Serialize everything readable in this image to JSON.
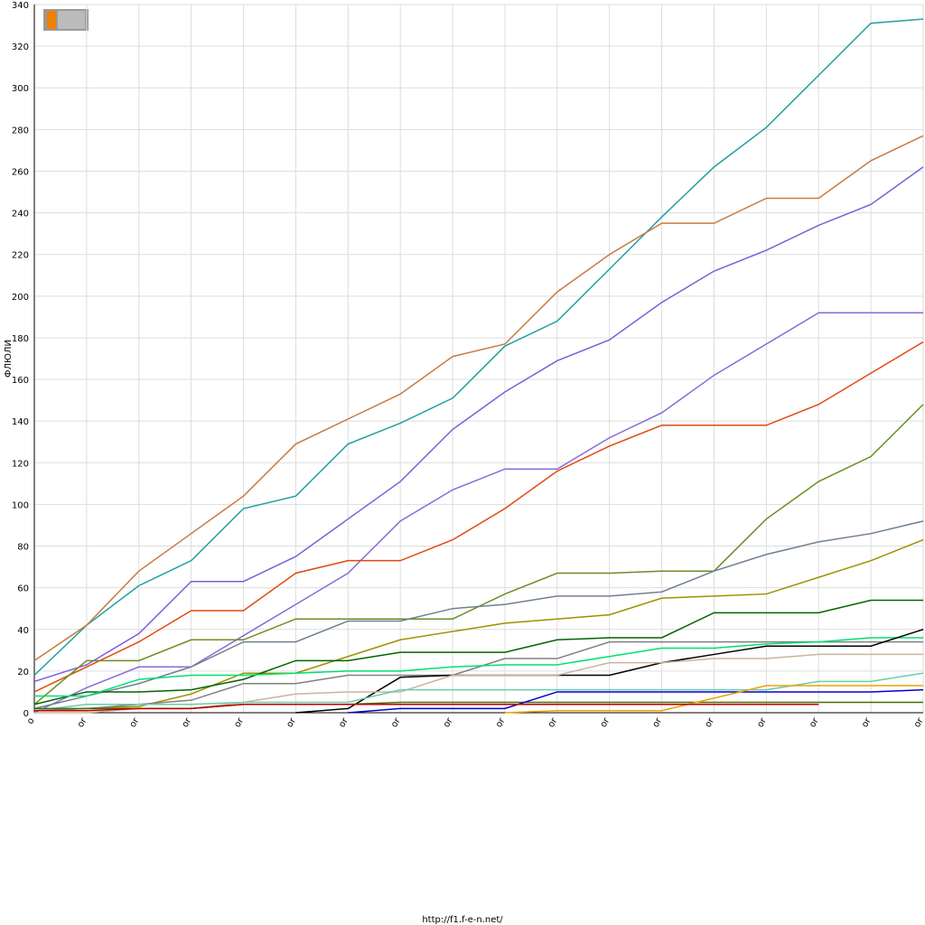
{
  "chart_data": {
    "type": "line",
    "y_label": "ФЛЮЛИ",
    "footer": "http://f1.f-e-n.net/",
    "categories": [
      "o",
      "or",
      "or",
      "or",
      "or",
      "or",
      "or",
      "or",
      "or",
      "or",
      "or",
      "or",
      "or",
      "or",
      "or",
      "or",
      "or",
      "or"
    ],
    "ylim": [
      0,
      340
    ],
    "yticks": [
      0,
      20,
      40,
      60,
      80,
      100,
      120,
      140,
      160,
      180,
      200,
      220,
      240,
      260,
      280,
      300,
      320,
      340
    ],
    "grid": true,
    "series": [
      {
        "color": "#20a0a0",
        "values": [
          18,
          42,
          61,
          73,
          98,
          104,
          129,
          139,
          151,
          176,
          188,
          213,
          238,
          262,
          281,
          306,
          331,
          333
        ]
      },
      {
        "color": "#c87a40",
        "values": [
          25,
          42,
          68,
          86,
          104,
          129,
          141,
          153,
          171,
          177,
          202,
          220,
          235,
          235,
          247,
          247,
          265,
          277
        ]
      },
      {
        "color": "#7b5fd8",
        "values": [
          15,
          23,
          38,
          63,
          63,
          75,
          93,
          111,
          136,
          154,
          169,
          179,
          197,
          212,
          222,
          234,
          244,
          262
        ]
      },
      {
        "color": "#8a6ad8",
        "values": [
          0,
          12,
          22,
          22,
          37,
          52,
          67,
          92,
          107,
          117,
          117,
          132,
          144,
          162,
          177,
          192,
          192,
          192
        ]
      },
      {
        "color": "#e04a10",
        "values": [
          10,
          22,
          34,
          49,
          49,
          67,
          73,
          73,
          83,
          98,
          116,
          128,
          138,
          138,
          138,
          148,
          163,
          178
        ]
      },
      {
        "color": "#6b8e23",
        "values": [
          4,
          25,
          25,
          35,
          35,
          45,
          45,
          45,
          45,
          57,
          67,
          67,
          68,
          68,
          93,
          111,
          123,
          148
        ]
      },
      {
        "color": "#708090",
        "values": [
          2,
          8,
          14,
          22,
          34,
          34,
          44,
          44,
          50,
          52,
          56,
          56,
          58,
          68,
          76,
          82,
          86,
          92
        ]
      },
      {
        "color": "#a09000",
        "values": [
          1,
          2,
          3,
          9,
          19,
          19,
          27,
          35,
          39,
          43,
          45,
          47,
          55,
          56,
          57,
          65,
          73,
          83
        ]
      },
      {
        "color": "#006400",
        "values": [
          4,
          10,
          10,
          11,
          16,
          25,
          25,
          29,
          29,
          29,
          35,
          36,
          36,
          48,
          48,
          48,
          54,
          54
        ]
      },
      {
        "color": "#808080",
        "values": [
          1,
          2,
          4,
          6,
          14,
          14,
          18,
          18,
          18,
          26,
          26,
          34,
          34,
          34,
          34,
          34,
          34,
          34
        ]
      },
      {
        "color": "#00e070",
        "values": [
          8,
          8,
          16,
          18,
          18,
          19,
          20,
          20,
          22,
          23,
          23,
          27,
          31,
          31,
          33,
          34,
          36,
          36
        ]
      },
      {
        "color": "#000000",
        "values": [
          null,
          null,
          null,
          null,
          null,
          0,
          2,
          17,
          18,
          18,
          18,
          18,
          24,
          28,
          32,
          32,
          32,
          40
        ]
      },
      {
        "color": "#c8b4a0",
        "values": [
          0,
          0,
          2,
          2,
          5,
          9,
          10,
          10,
          18,
          18,
          18,
          24,
          24,
          26,
          26,
          28,
          28,
          28
        ]
      },
      {
        "color": "#66cdaa",
        "values": [
          1,
          4,
          4,
          4,
          5,
          5,
          5,
          11,
          11,
          11,
          11,
          11,
          11,
          11,
          11,
          15,
          15,
          19
        ]
      },
      {
        "color": "#4b6b00",
        "values": [
          2,
          2,
          2,
          2,
          4,
          4,
          4,
          5,
          5,
          5,
          5,
          5,
          5,
          5,
          5,
          5,
          5,
          5
        ]
      },
      {
        "color": "#0000d0",
        "values": [
          null,
          null,
          null,
          null,
          null,
          null,
          0,
          2,
          2,
          2,
          10,
          10,
          10,
          10,
          10,
          10,
          10,
          11
        ]
      },
      {
        "color": "#f0a000",
        "values": [
          null,
          null,
          null,
          null,
          null,
          null,
          null,
          null,
          null,
          0,
          1,
          1,
          1,
          7,
          13,
          13,
          13,
          13
        ]
      },
      {
        "color": "#c00000",
        "values": [
          1,
          1,
          2,
          2,
          4,
          4,
          4,
          4,
          4,
          4,
          4,
          4,
          4,
          4,
          4,
          4,
          null,
          null
        ]
      }
    ]
  }
}
